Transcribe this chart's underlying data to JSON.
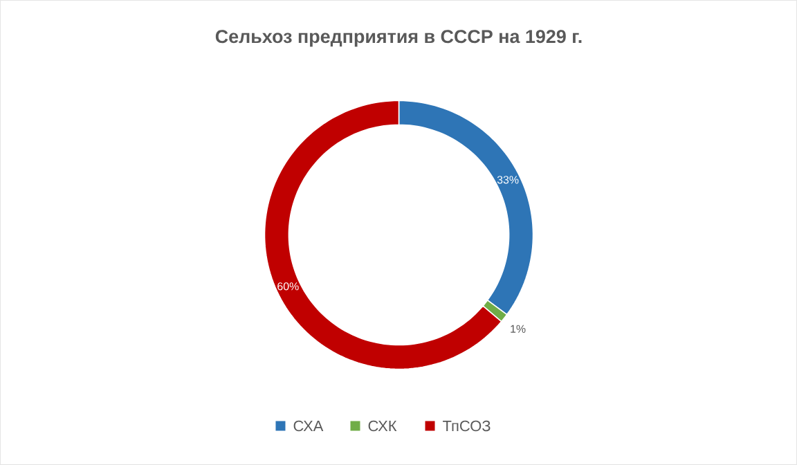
{
  "chart_data": {
    "type": "donut",
    "title": "Сельхоз предприятия  в СССР на 1929 г.",
    "categories": [
      "СХА",
      "СХК",
      "ТпСОЗ"
    ],
    "values": [
      33,
      1,
      60
    ],
    "value_labels": [
      "33%",
      "1%",
      "60%"
    ],
    "colors": [
      "#2e75b6",
      "#70ad47",
      "#c00000"
    ],
    "legend": "bottom"
  }
}
